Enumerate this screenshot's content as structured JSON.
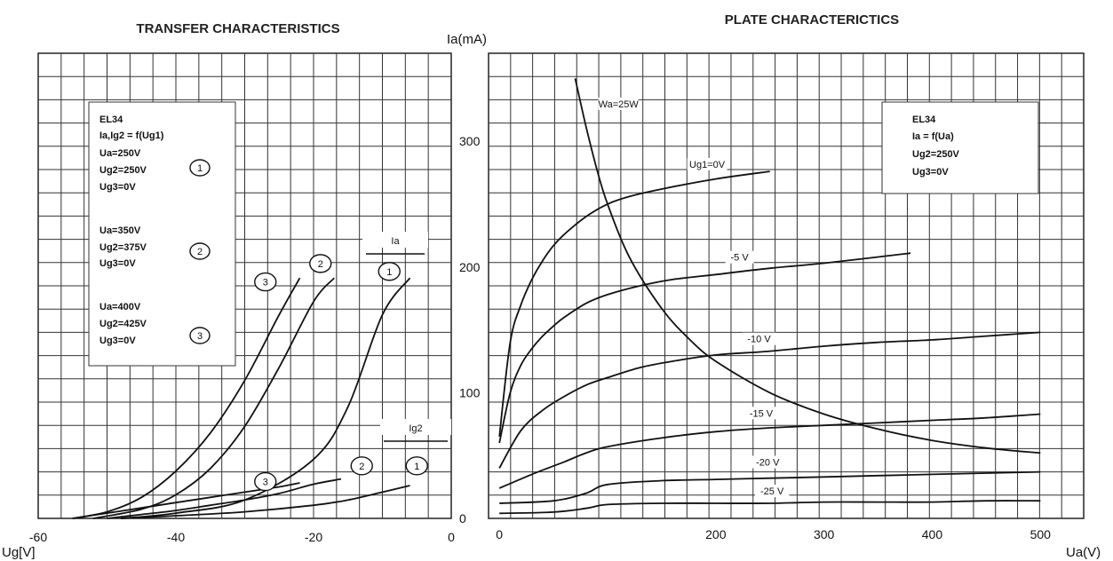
{
  "chart_data": [
    {
      "type": "line",
      "title": "TRANSFER CHARACTERISTICS",
      "xlabel": "Ug[V]",
      "xlim": [
        -60,
        0
      ],
      "xticks": [
        -60,
        -40,
        -20,
        0
      ],
      "ylim": [
        0,
        370
      ],
      "legend_box": [
        "EL34",
        "Ia,Ig2 = f(Ug1)",
        "Ua=250V",
        "Ug2=250V",
        "Ug3=0V",
        "Ua=350V",
        "Ug2=375V",
        "Ug3=0V",
        "Ua=400V",
        "Ug2=425V",
        "Ug3=0V"
      ],
      "legend_markers": [
        "1",
        "2",
        "3"
      ],
      "group_labels": [
        "Ia",
        "Ig2"
      ],
      "series": [
        {
          "name": "1",
          "group": "Ia",
          "x": [
            -48,
            -40,
            -30,
            -20,
            -15,
            -10,
            -6
          ],
          "y": [
            0,
            4,
            14,
            45,
            85,
            155,
            183
          ]
        },
        {
          "name": "2",
          "group": "Ia",
          "x": [
            -52,
            -45,
            -40,
            -35,
            -30,
            -25,
            -20,
            -17
          ],
          "y": [
            0,
            7,
            18,
            38,
            70,
            115,
            165,
            183
          ]
        },
        {
          "name": "3",
          "group": "Ia",
          "x": [
            -55,
            -50,
            -45,
            -40,
            -35,
            -30,
            -25,
            -22
          ],
          "y": [
            0,
            5,
            16,
            36,
            65,
            105,
            155,
            183
          ]
        },
        {
          "name": "1",
          "group": "Ig2",
          "x": [
            -48,
            -40,
            -30,
            -20,
            -15,
            -10,
            -6
          ],
          "y": [
            0,
            2,
            5,
            10,
            14,
            20,
            25
          ]
        },
        {
          "name": "2",
          "group": "Ig2",
          "x": [
            -50,
            -45,
            -40,
            -35,
            -30,
            -25,
            -20,
            -16
          ],
          "y": [
            0,
            3,
            6,
            10,
            14,
            19,
            26,
            30
          ]
        },
        {
          "name": "3",
          "group": "Ig2",
          "x": [
            -55,
            -50,
            -45,
            -40,
            -35,
            -30,
            -25,
            -22
          ],
          "y": [
            0,
            4,
            8,
            12,
            16,
            20,
            24,
            27
          ]
        }
      ],
      "labeled_markers": [
        {
          "text": "1",
          "x": -9,
          "y": 188
        },
        {
          "text": "2",
          "x": -19,
          "y": 194
        },
        {
          "text": "3",
          "x": -27,
          "y": 180
        },
        {
          "text": "1",
          "x": -5,
          "y": 40
        },
        {
          "text": "2",
          "x": -13,
          "y": 40
        },
        {
          "text": "3",
          "x": -27,
          "y": 28
        }
      ]
    },
    {
      "type": "line",
      "title": "PLATE CHARACTERICTICS",
      "xlabel": "Ua(V)",
      "ylabel": "Ia(mA)",
      "xlim": [
        -10,
        540
      ],
      "ylim": [
        0,
        370
      ],
      "xticks": [
        0,
        200,
        300,
        400,
        500
      ],
      "yticks": [
        0,
        100,
        200,
        300
      ],
      "grid": true,
      "legend_box": [
        "EL34",
        "Ia = f(Ua)",
        "Ug2=250V",
        "Ug3=0V"
      ],
      "series": [
        {
          "name": "Ug1=0V",
          "x": [
            0,
            10,
            20,
            30,
            40,
            50,
            60,
            80,
            100,
            120,
            150,
            200,
            250
          ],
          "y": [
            65,
            140,
            170,
            190,
            205,
            217,
            226,
            240,
            250,
            256,
            262,
            270,
            276
          ]
        },
        {
          "name": "-5 V",
          "x": [
            0,
            10,
            20,
            30,
            40,
            50,
            60,
            80,
            100,
            130,
            160,
            200,
            250,
            300,
            380
          ],
          "y": [
            60,
            100,
            122,
            135,
            145,
            153,
            160,
            171,
            178,
            185,
            190,
            194,
            199,
            203,
            211
          ]
        },
        {
          "name": "-10 V",
          "x": [
            0,
            20,
            40,
            60,
            80,
            100,
            130,
            160,
            200,
            250,
            300,
            350,
            400,
            450,
            500
          ],
          "y": [
            40,
            70,
            86,
            97,
            106,
            112,
            120,
            125,
            130,
            133,
            137,
            140,
            142,
            145,
            148
          ]
        },
        {
          "name": "-15 V",
          "x": [
            0,
            30,
            60,
            80,
            100,
            150,
            200,
            250,
            300,
            350,
            400,
            450,
            500
          ],
          "y": [
            24,
            35,
            45,
            52,
            57,
            64,
            69,
            72,
            74,
            76,
            78,
            80,
            83
          ]
        },
        {
          "name": "-20 V",
          "x": [
            0,
            50,
            80,
            100,
            150,
            200,
            250,
            300,
            350,
            400,
            450,
            500
          ],
          "y": [
            12,
            14,
            20,
            27,
            30,
            31,
            32,
            33,
            34,
            35,
            36,
            37
          ]
        },
        {
          "name": "-25 V",
          "x": [
            0,
            50,
            80,
            100,
            150,
            200,
            250,
            300,
            350,
            400,
            450,
            500
          ],
          "y": [
            4,
            5,
            8,
            11,
            12,
            12,
            12,
            13,
            13,
            13,
            14,
            14
          ]
        },
        {
          "name": "Wa=25W",
          "x": [
            70,
            80,
            90,
            100,
            120,
            150,
            175,
            200,
            250,
            300,
            350,
            400,
            450,
            500
          ],
          "y": [
            350,
            312,
            278,
            250,
            208,
            167,
            143,
            125,
            100,
            83,
            71,
            62,
            56,
            52
          ]
        }
      ],
      "curve_labels": [
        {
          "text": "Wa=25W",
          "x": 110,
          "y": 327
        },
        {
          "text": "Ug1=0V",
          "x": 192,
          "y": 279
        },
        {
          "text": "-5 V",
          "x": 222,
          "y": 205
        },
        {
          "text": "-10 V",
          "x": 240,
          "y": 140
        },
        {
          "text": "-15 V",
          "x": 242,
          "y": 81
        },
        {
          "text": "-20 V",
          "x": 248,
          "y": 42
        },
        {
          "text": "-25 V",
          "x": 252,
          "y": 19
        }
      ]
    }
  ]
}
